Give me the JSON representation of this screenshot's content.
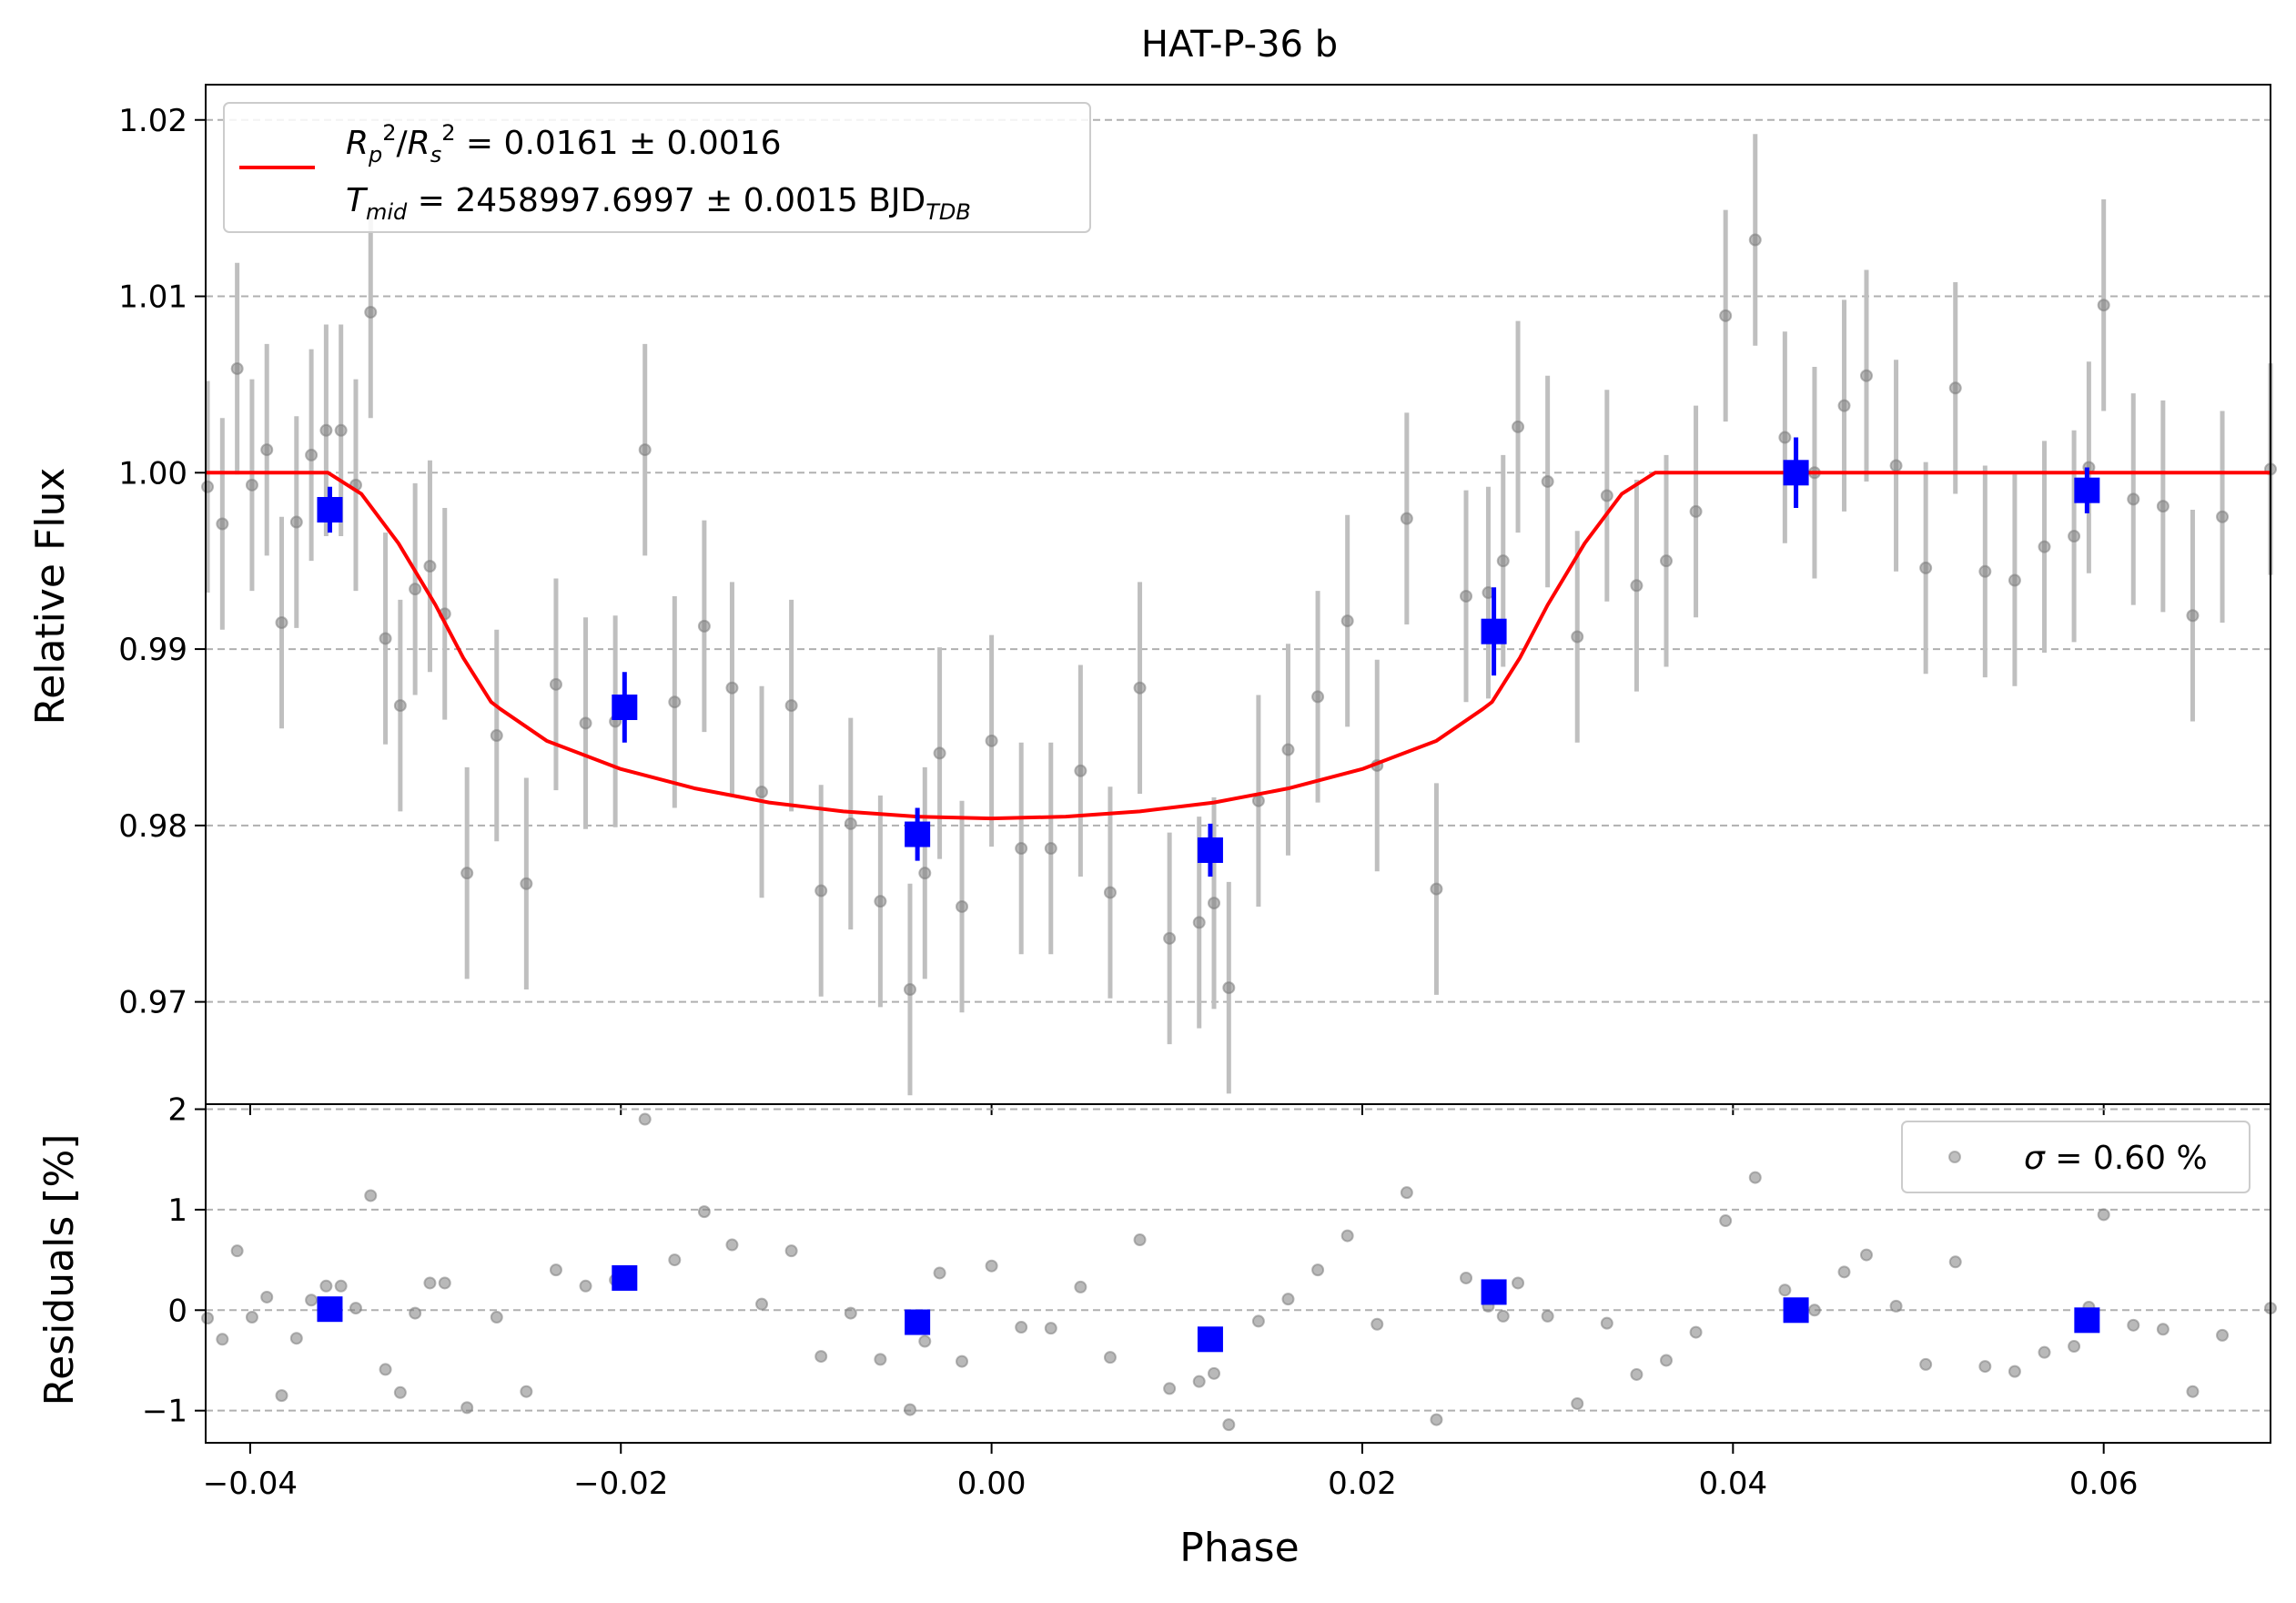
{
  "chart_data": [
    {
      "type": "scatter",
      "panel": "main",
      "title": "HAT-P-36 b",
      "xlabel": "Phase",
      "ylabel": "Relative Flux",
      "xlim": [
        -0.0424,
        0.069
      ],
      "ylim": [
        0.9642,
        1.022
      ],
      "xticks": [
        -0.04,
        -0.02,
        0.0,
        0.02,
        0.04,
        0.06
      ],
      "xtick_labels": [
        "−0.04",
        "−0.02",
        "0.00",
        "0.02",
        "0.04",
        "0.06"
      ],
      "yticks": [
        0.97,
        0.98,
        0.99,
        1.0,
        1.01,
        1.02
      ],
      "ytick_labels": [
        "0.97",
        "0.98",
        "0.99",
        "1.00",
        "1.01",
        "1.02"
      ],
      "grid": "horizontal dashed",
      "legend_position": "upper-left",
      "legend": {
        "line1_prefix": "R",
        "line1_sub1": "p",
        "line1_sup1": "2",
        "line1_slash": "/",
        "line1_r2": "R",
        "line1_sub2": "s",
        "line1_sup2": "2",
        "line1_rest": " = 0.0161 ± 0.0016",
        "line2_prefix": "T",
        "line2_sub": "mid",
        "line2_rest": " = 2458997.6997 ± 0.0015 BJD",
        "line2_sub2": "TDB"
      },
      "colors": {
        "raw": "#7f7f7f",
        "raw_err": "#bfbfbf",
        "binned": "#0000ff",
        "model": "#ff0000",
        "grid": "#b0b0b0"
      },
      "raw": {
        "x": [
          -0.0423,
          -0.0415,
          -0.0407,
          -0.0399,
          -0.0391,
          -0.0383,
          -0.0375,
          -0.0367,
          -0.0359,
          -0.0351,
          -0.0343,
          -0.0335,
          -0.0327,
          -0.0319,
          -0.0311,
          -0.0303,
          -0.0295,
          -0.0283,
          -0.0267,
          -0.0251,
          -0.0235,
          -0.0219,
          -0.0203,
          -0.0187,
          -0.0171,
          -0.0155,
          -0.014,
          -0.0124,
          -0.0108,
          -0.0092,
          -0.0076,
          -0.006,
          -0.0044,
          -0.0036,
          -0.0028,
          -0.0016,
          0.0,
          0.0016,
          0.0032,
          0.0048,
          0.0064,
          0.008,
          0.0096,
          0.0112,
          0.012,
          0.0128,
          0.0144,
          0.016,
          0.0176,
          0.0192,
          0.0208,
          0.0224,
          0.024,
          0.0256,
          0.0268,
          0.0276,
          0.0284,
          0.03,
          0.0316,
          0.0332,
          0.0348,
          0.0364,
          0.038,
          0.0396,
          0.0412,
          0.0428,
          0.0444,
          0.046,
          0.0472,
          0.0488,
          0.0504,
          0.052,
          0.0536,
          0.0552,
          0.0568,
          0.0584,
          0.0592,
          0.06,
          0.0616,
          0.0632,
          0.0648,
          0.0664,
          0.069
        ],
        "y": [
          0.9992,
          0.9971,
          1.0059,
          0.9993,
          1.0013,
          0.9915,
          0.9972,
          1.001,
          1.0024,
          1.0024,
          0.9993,
          1.0091,
          0.9906,
          0.9868,
          0.9934,
          0.9947,
          0.992,
          0.9773,
          0.9851,
          0.9767,
          0.988,
          0.9858,
          0.9859,
          1.0013,
          0.987,
          0.9913,
          0.9878,
          0.9819,
          0.9868,
          0.9763,
          0.9801,
          0.9757,
          0.9707,
          0.9773,
          0.9841,
          0.9754,
          0.9848,
          0.9787,
          0.9787,
          0.9831,
          0.9762,
          0.9878,
          0.9736,
          0.9745,
          0.9756,
          0.9708,
          0.9814,
          0.9843,
          0.9873,
          0.9916,
          0.9834,
          0.9974,
          0.9764,
          0.993,
          0.9932,
          0.995,
          1.0026,
          0.9995,
          0.9907,
          0.9987,
          0.9936,
          0.995,
          0.9978,
          1.0089,
          1.0132,
          1.002,
          1.0,
          1.0038,
          1.0055,
          1.0004,
          0.9946,
          1.0048,
          0.9944,
          0.9939,
          0.9958,
          0.9964,
          1.0003,
          1.0095,
          0.9985,
          0.9981,
          0.9919,
          0.9975,
          1.0002
        ],
        "err": 0.006
      },
      "binned": {
        "x": [
          -0.0357,
          -0.0198,
          -0.004,
          0.0118,
          0.0271,
          0.0434,
          0.0591
        ],
        "y": [
          0.9979,
          0.9867,
          0.9795,
          0.9786,
          0.991,
          1.0,
          0.999
        ],
        "err": [
          0.0013,
          0.002,
          0.0015,
          0.0015,
          0.0025,
          0.002,
          0.0013
        ]
      },
      "model": {
        "x": [
          -0.0424,
          -0.0358,
          -0.034,
          -0.032,
          -0.03,
          -0.0285,
          -0.027,
          -0.0265,
          -0.024,
          -0.02,
          -0.016,
          -0.012,
          -0.008,
          -0.004,
          0.0,
          0.004,
          0.008,
          0.012,
          0.016,
          0.02,
          0.024,
          0.0265,
          0.027,
          0.0285,
          0.03,
          0.032,
          0.034,
          0.0358,
          0.069
        ],
        "y": [
          1.0,
          1.0,
          0.9988,
          0.996,
          0.9925,
          0.9895,
          0.987,
          0.9866,
          0.9848,
          0.9832,
          0.9821,
          0.9813,
          0.9808,
          0.9805,
          0.9804,
          0.9805,
          0.9808,
          0.9813,
          0.9821,
          0.9832,
          0.9848,
          0.9866,
          0.987,
          0.9895,
          0.9925,
          0.996,
          0.9988,
          1.0,
          1.0
        ]
      }
    },
    {
      "type": "scatter",
      "panel": "residuals",
      "xlabel": "Phase",
      "ylabel": "Residuals [%]",
      "xlim": [
        -0.0424,
        0.069
      ],
      "ylim": [
        -1.32,
        2.05
      ],
      "yticks": [
        -1,
        0,
        1,
        2
      ],
      "ytick_labels": [
        "−1",
        "0",
        "1",
        "2"
      ],
      "grid": "horizontal dashed",
      "legend_position": "upper-right",
      "legend": {
        "sigma": "σ",
        "rest": " = 0.60 %"
      },
      "raw": {
        "y": [
          -0.08,
          -0.29,
          0.59,
          -0.07,
          0.13,
          -0.85,
          -0.28,
          0.1,
          0.24,
          0.24,
          0.02,
          1.14,
          -0.59,
          -0.82,
          -0.03,
          0.27,
          0.27,
          -0.97,
          -0.07,
          -0.81,
          0.4,
          0.24,
          0.3,
          1.9,
          0.5,
          0.98,
          0.65,
          0.06,
          0.59,
          -0.46,
          -0.03,
          -0.49,
          -0.99,
          -0.31,
          0.37,
          -0.51,
          0.44,
          -0.17,
          -0.18,
          0.23,
          -0.47,
          0.7,
          -0.78,
          -0.71,
          -0.63,
          -1.14,
          -0.11,
          0.11,
          0.4,
          0.74,
          -0.14,
          1.17,
          -1.09,
          0.32,
          0.04,
          -0.06,
          0.27,
          -0.06,
          -0.93,
          -0.13,
          -0.64,
          -0.5,
          -0.22,
          0.89,
          1.32,
          0.2,
          0.0,
          0.38,
          0.55,
          0.04,
          -0.54,
          0.48,
          -0.56,
          -0.61,
          -0.42,
          -0.36,
          0.03,
          0.95,
          -0.15,
          -0.19,
          -0.81,
          -0.25,
          0.02
        ]
      },
      "binned": {
        "y": [
          0.01,
          0.32,
          -0.12,
          -0.29,
          0.18,
          0.0,
          -0.1
        ]
      }
    }
  ]
}
